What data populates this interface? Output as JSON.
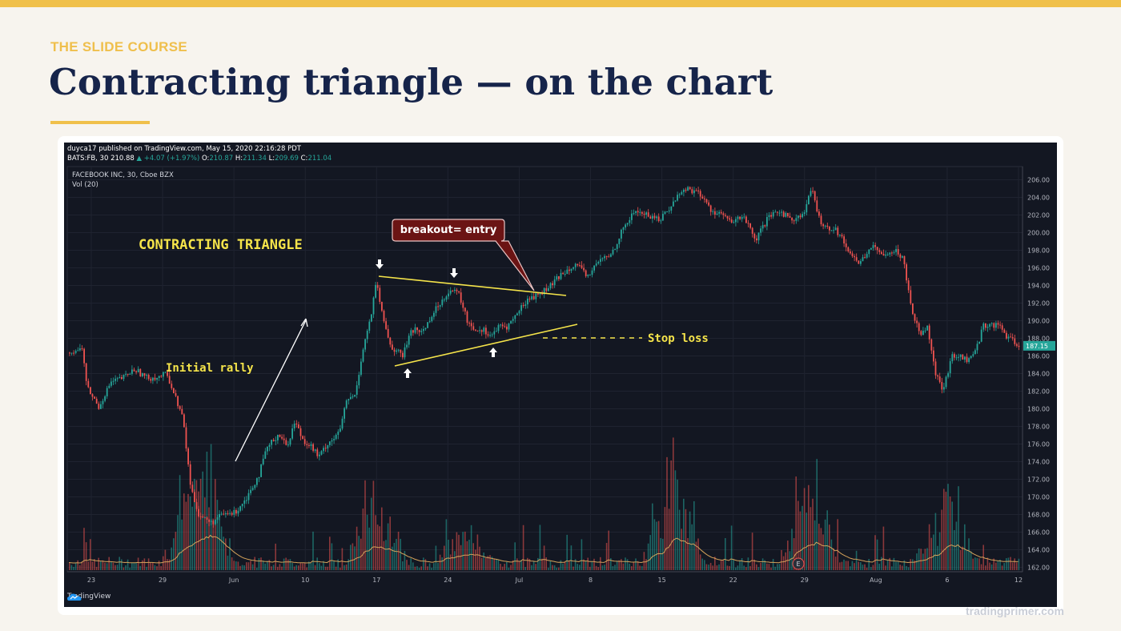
{
  "slide": {
    "kicker": "THE SLIDE COURSE",
    "title": "Contracting triangle — on the chart",
    "footer": "tradingprimer.com",
    "accent_color": "#f0c04a",
    "title_color": "#16244a"
  },
  "chart_header": {
    "line1": "duyca17 published on TradingView.com, May 15, 2020 22:16:28 PDT",
    "line2_prefix": "BATS:FB, 30  210.88",
    "change": "▲ +4.07 (+1.97%)",
    "o_label": "O:",
    "o_value": "210.87",
    "h_label": "H:",
    "h_value": "211.34",
    "l_label": "L:",
    "l_value": "209.69",
    "c_label": "C:",
    "c_value": "211.04",
    "symbol": "FACEBOOK INC, 30, Cboe BZX",
    "volume_label": "Vol (20)",
    "brand": "TradingView",
    "brand_icon": "tradingview-cloud-icon"
  },
  "chart_data": {
    "type": "candlestick",
    "x_tick_labels": [
      "23",
      "29",
      "Jun",
      "10",
      "17",
      "24",
      "Jul",
      "8",
      "15",
      "22",
      "29",
      "Aug",
      "6",
      "12"
    ],
    "y_tick_labels": [
      "206.00",
      "204.00",
      "202.00",
      "200.00",
      "198.00",
      "196.00",
      "194.00",
      "192.00",
      "190.00",
      "188.00",
      "186.00",
      "184.00",
      "182.00",
      "180.00",
      "178.00",
      "176.00",
      "174.00",
      "172.00",
      "170.00",
      "168.00",
      "166.00",
      "164.00",
      "162.00"
    ],
    "ylim": [
      161.5,
      207.5
    ],
    "last_price_label": "187.15",
    "price_path": [
      [
        0,
        186
      ],
      [
        8,
        186.5
      ],
      [
        25,
        186.8
      ],
      [
        30,
        182.5
      ],
      [
        45,
        180.2
      ],
      [
        60,
        183
      ],
      [
        75,
        183.5
      ],
      [
        90,
        184.5
      ],
      [
        105,
        183.5
      ],
      [
        120,
        183.6
      ],
      [
        130,
        184
      ],
      [
        140,
        181.5
      ],
      [
        150,
        179
      ],
      [
        160,
        171
      ],
      [
        170,
        168
      ],
      [
        185,
        167
      ],
      [
        200,
        168
      ],
      [
        215,
        168.2
      ],
      [
        230,
        170
      ],
      [
        245,
        172.5
      ],
      [
        255,
        175.5
      ],
      [
        270,
        177.2
      ],
      [
        280,
        175.7
      ],
      [
        290,
        178.6
      ],
      [
        300,
        176.5
      ],
      [
        310,
        175.8
      ],
      [
        320,
        174.5
      ],
      [
        330,
        176
      ],
      [
        345,
        177.2
      ],
      [
        355,
        181
      ],
      [
        365,
        181.5
      ],
      [
        375,
        186.8
      ],
      [
        385,
        190.5
      ],
      [
        392,
        194.5
      ],
      [
        398,
        191
      ],
      [
        410,
        187
      ],
      [
        425,
        186
      ],
      [
        435,
        189
      ],
      [
        450,
        188.8
      ],
      [
        460,
        190.5
      ],
      [
        475,
        192.5
      ],
      [
        483,
        193.5
      ],
      [
        495,
        193
      ],
      [
        505,
        190
      ],
      [
        515,
        189
      ],
      [
        525,
        189
      ],
      [
        535,
        188.3
      ],
      [
        545,
        189.3
      ],
      [
        555,
        189.3
      ],
      [
        565,
        190.5
      ],
      [
        580,
        192.4
      ],
      [
        595,
        193
      ],
      [
        610,
        194
      ],
      [
        625,
        195.5
      ],
      [
        640,
        196.5
      ],
      [
        655,
        195
      ],
      [
        670,
        196.8
      ],
      [
        685,
        197.5
      ],
      [
        700,
        200.5
      ],
      [
        715,
        202.5
      ],
      [
        730,
        202
      ],
      [
        745,
        201.5
      ],
      [
        760,
        203
      ],
      [
        770,
        204.5
      ],
      [
        780,
        205
      ],
      [
        795,
        204.5
      ],
      [
        810,
        202.5
      ],
      [
        825,
        202
      ],
      [
        835,
        201
      ],
      [
        850,
        202
      ],
      [
        865,
        199
      ],
      [
        880,
        201.5
      ],
      [
        895,
        202.5
      ],
      [
        910,
        201.5
      ],
      [
        925,
        202
      ],
      [
        935,
        205
      ],
      [
        945,
        201.5
      ],
      [
        955,
        200.5
      ],
      [
        965,
        200.5
      ],
      [
        975,
        199
      ],
      [
        985,
        197.5
      ],
      [
        995,
        196.5
      ],
      [
        1010,
        198.5
      ],
      [
        1020,
        197.6
      ],
      [
        1030,
        197.8
      ],
      [
        1040,
        198
      ],
      [
        1050,
        197
      ],
      [
        1060,
        191.5
      ],
      [
        1070,
        188.5
      ],
      [
        1080,
        189.5
      ],
      [
        1090,
        184
      ],
      [
        1100,
        182
      ],
      [
        1110,
        186
      ],
      [
        1120,
        186
      ],
      [
        1130,
        185.5
      ],
      [
        1140,
        186.5
      ],
      [
        1150,
        189.5
      ],
      [
        1160,
        189.5
      ],
      [
        1170,
        189.5
      ],
      [
        1180,
        188
      ],
      [
        1190,
        187.5
      ],
      [
        1195,
        187.2
      ]
    ],
    "volume_spikes": [
      [
        160,
        6
      ],
      [
        175,
        9
      ],
      [
        390,
        8
      ],
      [
        500,
        4
      ],
      [
        760,
        10
      ],
      [
        930,
        9
      ],
      [
        1100,
        7
      ]
    ],
    "annotations": {
      "pattern_label": "CONTRACTING TRIANGLE",
      "rally_label": "Initial rally",
      "callout": "breakout= entry",
      "stop_label": "Stop loss",
      "event_marker": "E"
    },
    "colors": {
      "background": "#131722",
      "up": "#26a69a",
      "down": "#ef5350",
      "annotation_yellow": "#f5e44a",
      "callout_bg": "#6b1414",
      "volume_ma": "#d4a25a"
    }
  }
}
